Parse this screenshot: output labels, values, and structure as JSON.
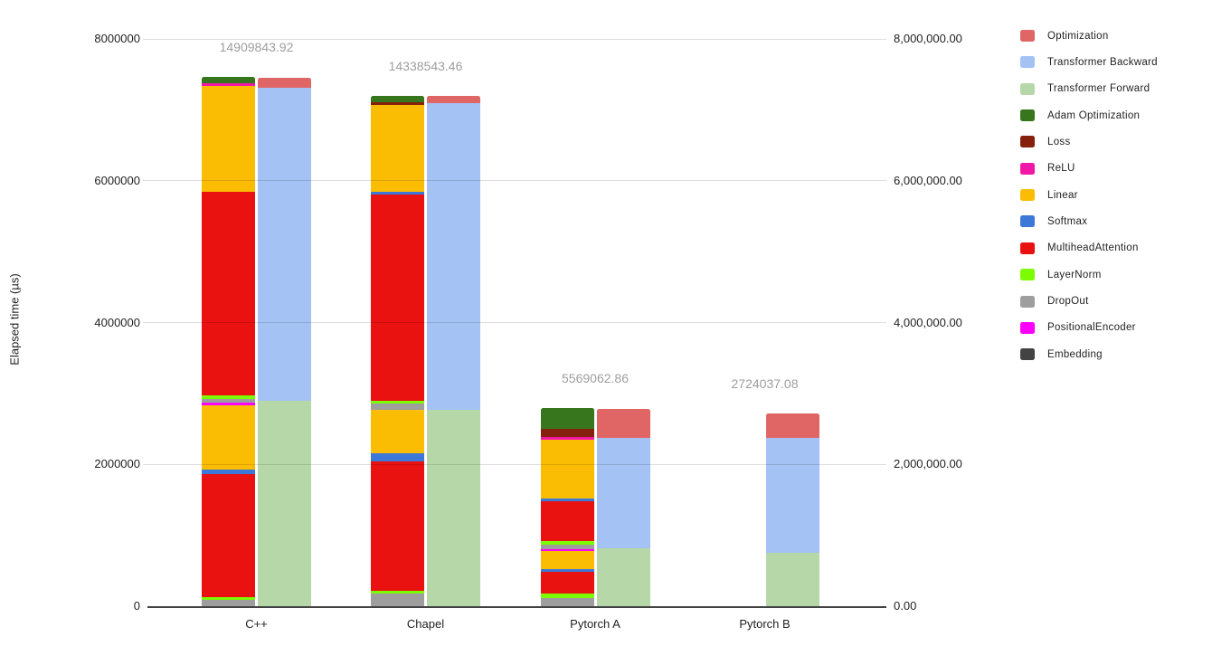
{
  "chart_data": {
    "type": "bar",
    "stacked": true,
    "title": "",
    "xlabel": "",
    "ylabel": "Elapsed time (µs)",
    "ylim": [
      0,
      8000000
    ],
    "grid": true,
    "legend_position": "right",
    "unit": "µs",
    "y_axis_left": {
      "tick_values": [
        8000000,
        6000000,
        4000000,
        2000000,
        0
      ],
      "tick_labels": [
        "8000000",
        "6000000",
        "4000000",
        "2000000",
        "0"
      ]
    },
    "y_axis_right": {
      "tick_values": [
        8000000,
        6000000,
        4000000,
        2000000,
        0
      ],
      "tick_labels": [
        "8,000,000.00",
        "6,000,000.00",
        "4,000,000.00",
        "2,000,000.00",
        "0.00"
      ]
    },
    "categories": [
      "C++",
      "Chapel",
      "Pytorch A",
      "Pytorch B"
    ],
    "totals": [
      14909843.92,
      14338543.46,
      5569062.86,
      2724037.08
    ],
    "legend": [
      {
        "label": "Optimization",
        "color": "#e06666"
      },
      {
        "label": "Transformer Backward",
        "color": "#a4c2f4"
      },
      {
        "label": "Transformer Forward",
        "color": "#b6d7a8"
      },
      {
        "label": "Adam Optimization",
        "color": "#38761d"
      },
      {
        "label": "Loss",
        "color": "#85200c"
      },
      {
        "label": "ReLU",
        "color": "#f118a8"
      },
      {
        "label": "Linear",
        "color": "#fbbc04"
      },
      {
        "label": "Softmax",
        "color": "#3c78d8"
      },
      {
        "label": "MultiheadAttention",
        "color": "#ea1111"
      },
      {
        "label": "LayerNorm",
        "color": "#7cfc00"
      },
      {
        "label": "DropOut",
        "color": "#9e9e9e"
      },
      {
        "label": "PositionalEncoder",
        "color": "#ff00ff"
      },
      {
        "label": "Embedding",
        "color": "#434343"
      }
    ],
    "groups": [
      {
        "category": "C++",
        "total_label": "14909843.92",
        "bars": [
          {
            "name": "breakdown",
            "slot": "left",
            "segments_bottom_to_top": [
              {
                "s": "DropOut",
                "v": 89300
              },
              {
                "s": "LayerNorm",
                "v": 38300
              },
              {
                "s": "MultiheadAttention",
                "v": 1735000
              },
              {
                "s": "Softmax",
                "v": 63800
              },
              {
                "s": "Linear",
                "v": 906000
              },
              {
                "s": "PositionalEncoder",
                "v": 38300
              },
              {
                "s": "DropOut",
                "v": 51000
              },
              {
                "s": "LayerNorm",
                "v": 51000
              },
              {
                "s": "MultiheadAttention",
                "v": 2871000
              },
              {
                "s": "Linear",
                "v": 1493000
              },
              {
                "s": "ReLU",
                "v": 38300
              },
              {
                "s": "Adam Optimization",
                "v": 89300
              }
            ]
          },
          {
            "name": "summary",
            "slot": "right",
            "segments_bottom_to_top": [
              {
                "s": "Transformer Forward",
                "v": 2896000
              },
              {
                "s": "Transformer Backward",
                "v": 4415000
              },
              {
                "s": "Optimization",
                "v": 140400
              }
            ]
          }
        ]
      },
      {
        "category": "Chapel",
        "total_label": "14338543.46",
        "bars": [
          {
            "name": "breakdown",
            "slot": "left",
            "segments_bottom_to_top": [
              {
                "s": "DropOut",
                "v": 178600
              },
              {
                "s": "LayerNorm",
                "v": 38300
              },
              {
                "s": "MultiheadAttention",
                "v": 1824700
              },
              {
                "s": "Softmax",
                "v": 114800
              },
              {
                "s": "Linear",
                "v": 612400
              },
              {
                "s": "DropOut",
                "v": 89300
              },
              {
                "s": "LayerNorm",
                "v": 38300
              },
              {
                "s": "MultiheadAttention",
                "v": 2909000
              },
              {
                "s": "Softmax",
                "v": 32000
              },
              {
                "s": "Linear",
                "v": 1225000
              },
              {
                "s": "Loss",
                "v": 38300
              },
              {
                "s": "Adam Optimization",
                "v": 89300
              }
            ]
          },
          {
            "name": "summary",
            "slot": "right",
            "segments_bottom_to_top": [
              {
                "s": "Transformer Forward",
                "v": 2768900
              },
              {
                "s": "Transformer Backward",
                "v": 4325000
              },
              {
                "s": "Optimization",
                "v": 102000
              }
            ]
          }
        ]
      },
      {
        "category": "Pytorch A",
        "total_label": "5569062.86",
        "bars": [
          {
            "name": "breakdown",
            "slot": "left",
            "segments_bottom_to_top": [
              {
                "s": "DropOut",
                "v": 114800
              },
              {
                "s": "LayerNorm",
                "v": 63800
              },
              {
                "s": "MultiheadAttention",
                "v": 306200
              },
              {
                "s": "Softmax",
                "v": 38300
              },
              {
                "s": "Linear",
                "v": 255200
              },
              {
                "s": "PositionalEncoder",
                "v": 25500
              },
              {
                "s": "DropOut",
                "v": 63800
              },
              {
                "s": "LayerNorm",
                "v": 51000
              },
              {
                "s": "MultiheadAttention",
                "v": 561400
              },
              {
                "s": "Softmax",
                "v": 38300
              },
              {
                "s": "Linear",
                "v": 829400
              },
              {
                "s": "ReLU",
                "v": 38300
              },
              {
                "s": "Loss",
                "v": 114800
              },
              {
                "s": "Adam Optimization",
                "v": 293500
              }
            ]
          },
          {
            "name": "summary",
            "slot": "right",
            "segments_bottom_to_top": [
              {
                "s": "Transformer Forward",
                "v": 816600
              },
              {
                "s": "Transformer Backward",
                "v": 1556700
              },
              {
                "s": "Optimization",
                "v": 408300
              }
            ]
          }
        ]
      },
      {
        "category": "Pytorch B",
        "total_label": "2724037.08",
        "bars": [
          {
            "name": "summary",
            "slot": "right",
            "segments_bottom_to_top": [
              {
                "s": "Transformer Forward",
                "v": 752800
              },
              {
                "s": "Transformer Backward",
                "v": 1620400
              },
              {
                "s": "Optimization",
                "v": 344500
              }
            ]
          }
        ]
      }
    ]
  }
}
